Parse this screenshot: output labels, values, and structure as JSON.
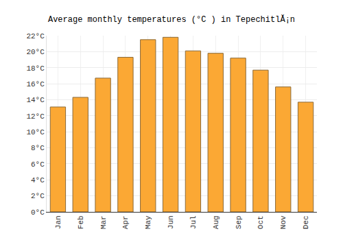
{
  "chart_data": {
    "type": "bar",
    "title": "Average monthly temperatures (°C ) in TepechitlĂ¡n",
    "categories": [
      "Jan",
      "Feb",
      "Mar",
      "Apr",
      "May",
      "Jun",
      "Jul",
      "Aug",
      "Sep",
      "Oct",
      "Nov",
      "Dec"
    ],
    "values": [
      13.1,
      14.3,
      16.7,
      19.3,
      21.5,
      21.8,
      20.1,
      19.8,
      19.2,
      17.7,
      15.6,
      13.7
    ],
    "color": "#fba834",
    "ylim": [
      0,
      22
    ],
    "yticks": [
      {
        "value": 0,
        "label": "0°C"
      },
      {
        "value": 2,
        "label": "2°C"
      },
      {
        "value": 4,
        "label": "4°C"
      },
      {
        "value": 6,
        "label": "6°C"
      },
      {
        "value": 8,
        "label": "8°C"
      },
      {
        "value": 10,
        "label": "10°C"
      },
      {
        "value": 12,
        "label": "12°C"
      },
      {
        "value": 14,
        "label": "14°C"
      },
      {
        "value": 16,
        "label": "16°C"
      },
      {
        "value": 18,
        "label": "18°C"
      },
      {
        "value": 20,
        "label": "20°C"
      },
      {
        "value": 22,
        "label": "22°C"
      }
    ],
    "grid": true
  }
}
